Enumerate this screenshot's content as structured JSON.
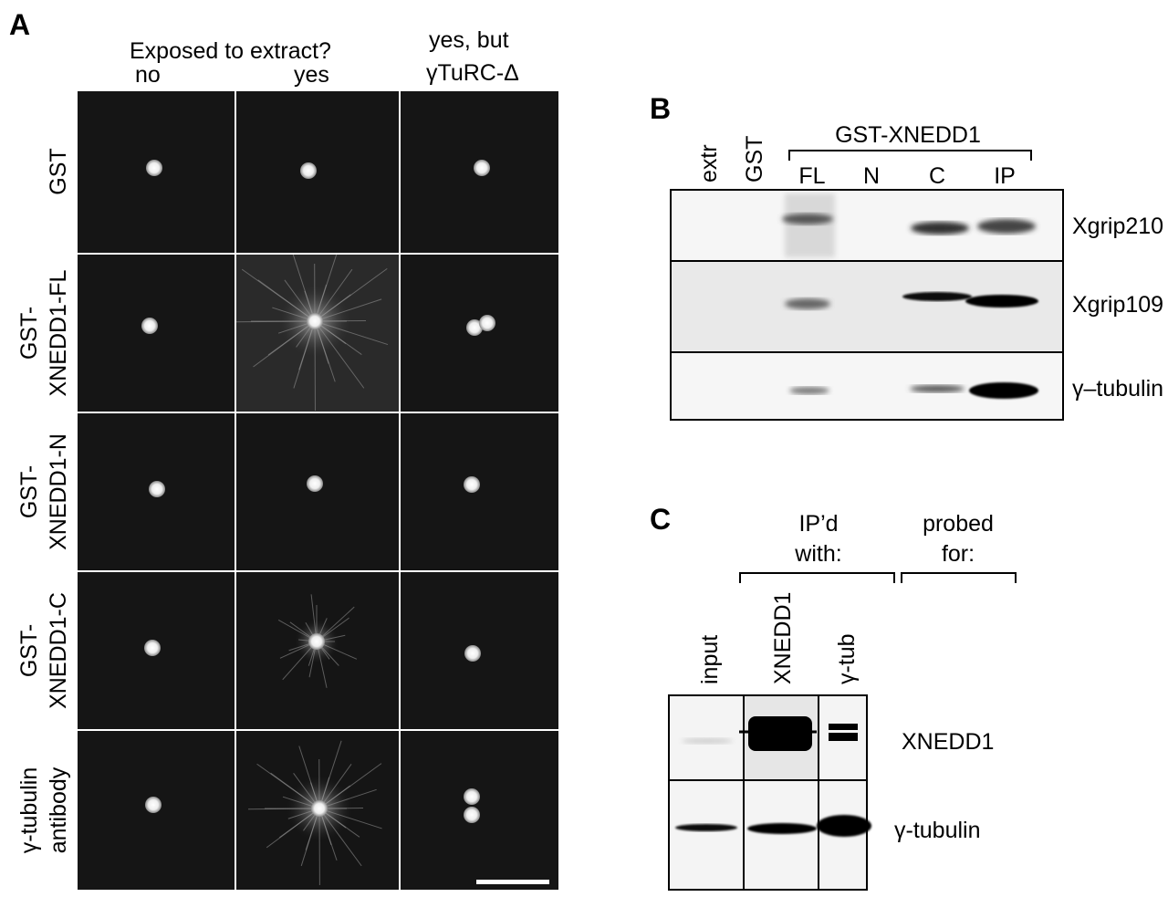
{
  "panel_a": {
    "label": "A",
    "header": "Exposed to extract?",
    "columns": [
      "no",
      "yes",
      "yes, but",
      "γTuRC-Δ"
    ],
    "rows": [
      {
        "line1": "GST",
        "line2": ""
      },
      {
        "line1": "GST-",
        "line2": "XNEDD1-FL"
      },
      {
        "line1": "GST-",
        "line2": "XNEDD1-N"
      },
      {
        "line1": "GST-",
        "line2": "XNEDD1-C"
      },
      {
        "line1": "γ-tubulin",
        "line2": "antibody"
      }
    ]
  },
  "panel_b": {
    "label": "B",
    "lanes": [
      "extr",
      "GST"
    ],
    "group_label": "GST-XNEDD1",
    "group_lanes": [
      "FL",
      "N",
      "C",
      "IP"
    ],
    "blots": [
      "Xgrip210",
      "Xgrip109",
      "γ–tubulin"
    ]
  },
  "panel_c": {
    "label": "C",
    "ip_header": [
      "IP’d",
      "with:"
    ],
    "probe_header": [
      "probed",
      "for:"
    ],
    "lanes": [
      "input",
      "XNEDD1",
      "γ-tub"
    ],
    "blots": [
      "XNEDD1",
      "γ-tubulin"
    ]
  }
}
